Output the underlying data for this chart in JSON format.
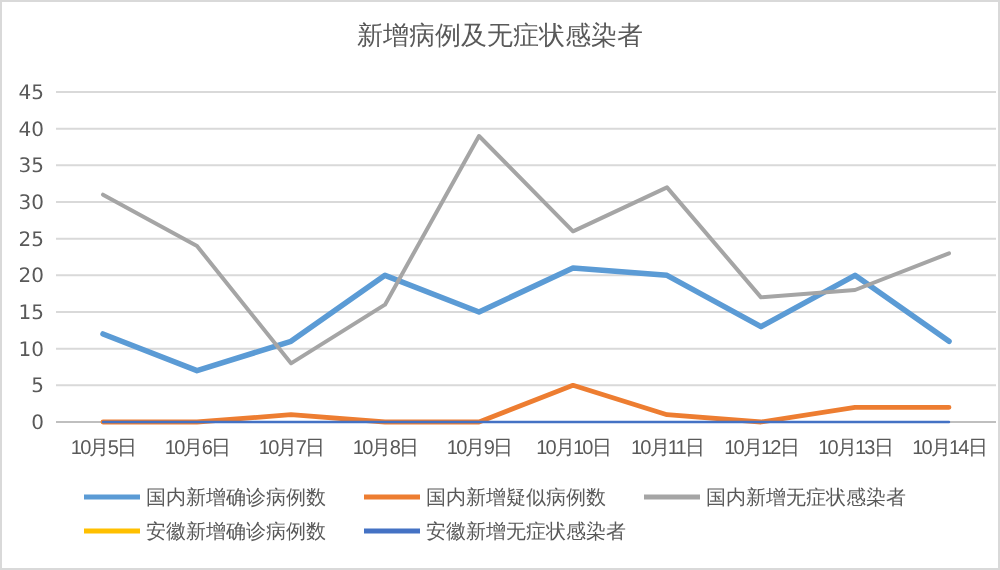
{
  "chart_data": {
    "type": "line",
    "title": "新增病例及无症状感染者",
    "categories": [
      "10月5日",
      "10月6日",
      "10月7日",
      "10月8日",
      "10月9日",
      "10月10日",
      "10月11日",
      "10月12日",
      "10月13日",
      "10月14日"
    ],
    "series": [
      {
        "name": "国内新增确诊病例数",
        "color": "#5b9bd5",
        "values": [
          12,
          7,
          11,
          20,
          15,
          21,
          20,
          13,
          20,
          11
        ]
      },
      {
        "name": "国内新增疑似病例数",
        "color": "#ed7d31",
        "values": [
          0,
          0,
          1,
          0,
          0,
          5,
          1,
          0,
          2,
          2
        ]
      },
      {
        "name": "国内新增无症状感染者",
        "color": "#a5a5a5",
        "values": [
          31,
          24,
          8,
          16,
          39,
          26,
          32,
          17,
          18,
          23
        ]
      },
      {
        "name": "安徽新增确诊病例数",
        "color": "#ffc000",
        "values": [
          null,
          null,
          null,
          null,
          null,
          null,
          null,
          null,
          null,
          null
        ]
      },
      {
        "name": "安徽新增无症状感染者",
        "color": "#4472c4",
        "values": [
          0,
          0,
          0,
          0,
          0,
          0,
          0,
          0,
          0,
          0
        ]
      }
    ],
    "ylim": [
      0,
      45
    ],
    "yticks": [
      0,
      5,
      10,
      15,
      20,
      25,
      30,
      35,
      40,
      45
    ],
    "grid": "y",
    "legend": "bottom"
  }
}
